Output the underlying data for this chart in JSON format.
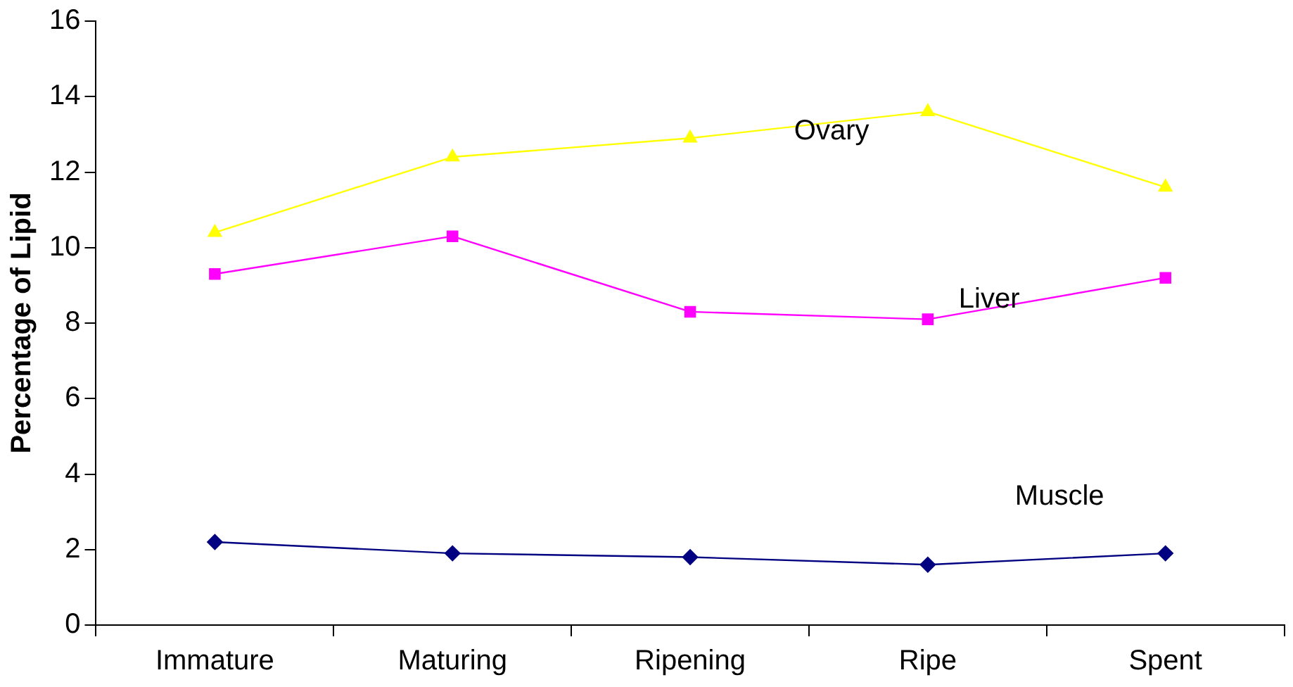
{
  "chart_data": {
    "type": "line",
    "ylabel": "Percentage of Lipid",
    "categories": [
      "Immature",
      "Maturing",
      "Ripening",
      "Ripe",
      "Spent"
    ],
    "ylim": [
      0,
      16
    ],
    "yticks": [
      0,
      2,
      4,
      6,
      8,
      10,
      12,
      14,
      16
    ],
    "grid": false,
    "legend": false,
    "series": [
      {
        "name": "Ovary",
        "color": "#ffff00",
        "marker": "triangle",
        "values": [
          10.4,
          12.4,
          12.9,
          13.6,
          11.6
        ]
      },
      {
        "name": "Liver",
        "color": "#ff00ff",
        "marker": "square",
        "values": [
          9.3,
          10.3,
          8.3,
          8.1,
          9.2
        ]
      },
      {
        "name": "Muscle",
        "color": "#000080",
        "marker": "diamond",
        "values": [
          2.2,
          1.9,
          1.8,
          1.6,
          1.9
        ]
      }
    ]
  }
}
